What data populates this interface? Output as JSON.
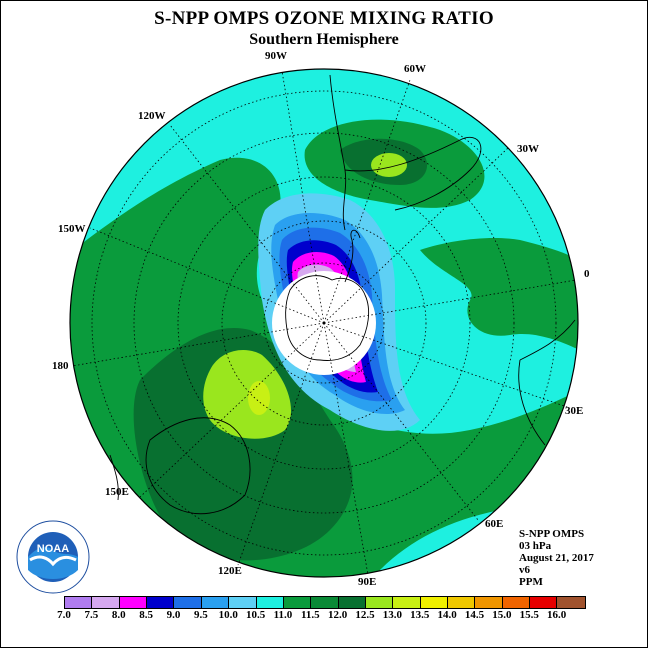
{
  "title": "S-NPP OMPS OZONE MIXING RATIO",
  "subtitle": "Southern Hemisphere",
  "longitude_labels": {
    "w90": "90W",
    "w60": "60W",
    "w30": "30W",
    "w120": "120W",
    "w150": "150W",
    "e0": "0",
    "w180": "180",
    "e30": "30E",
    "e60": "60E",
    "e90": "90E",
    "e120": "120E",
    "e150": "150E"
  },
  "info": {
    "instrument": "S-NPP OMPS",
    "pressure": "03 hPa",
    "date": "August 21, 2017",
    "version": "v6",
    "units": "PPM"
  },
  "logo_text": "NOAA",
  "colorbar": {
    "ticks": [
      "7.0",
      "7.5",
      "8.0",
      "8.5",
      "9.0",
      "9.5",
      "10.0",
      "10.5",
      "11.0",
      "11.5",
      "12.0",
      "12.5",
      "13.0",
      "13.5",
      "14.0",
      "14.5",
      "15.0",
      "15.5",
      "16.0"
    ],
    "colors": [
      "#b07cf0",
      "#d6a8f0",
      "#ff00ff",
      "#0000cd",
      "#1e6fe8",
      "#2aa0f0",
      "#5ed0f5",
      "#1ef0e0",
      "#0a9b3c",
      "#0a8a36",
      "#087030",
      "#9ae61e",
      "#c8f014",
      "#f0f000",
      "#f0c800",
      "#f09600",
      "#f06400",
      "#e60000",
      "#a0522d"
    ]
  },
  "map_legend_colors": {
    "background_field": "#1ef0e0",
    "mid_green": "#0a9b3c",
    "dark_green": "#087030",
    "lime": "#9ae61e",
    "yellow_green": "#c8f014",
    "polar_night": "#ffffff"
  }
}
